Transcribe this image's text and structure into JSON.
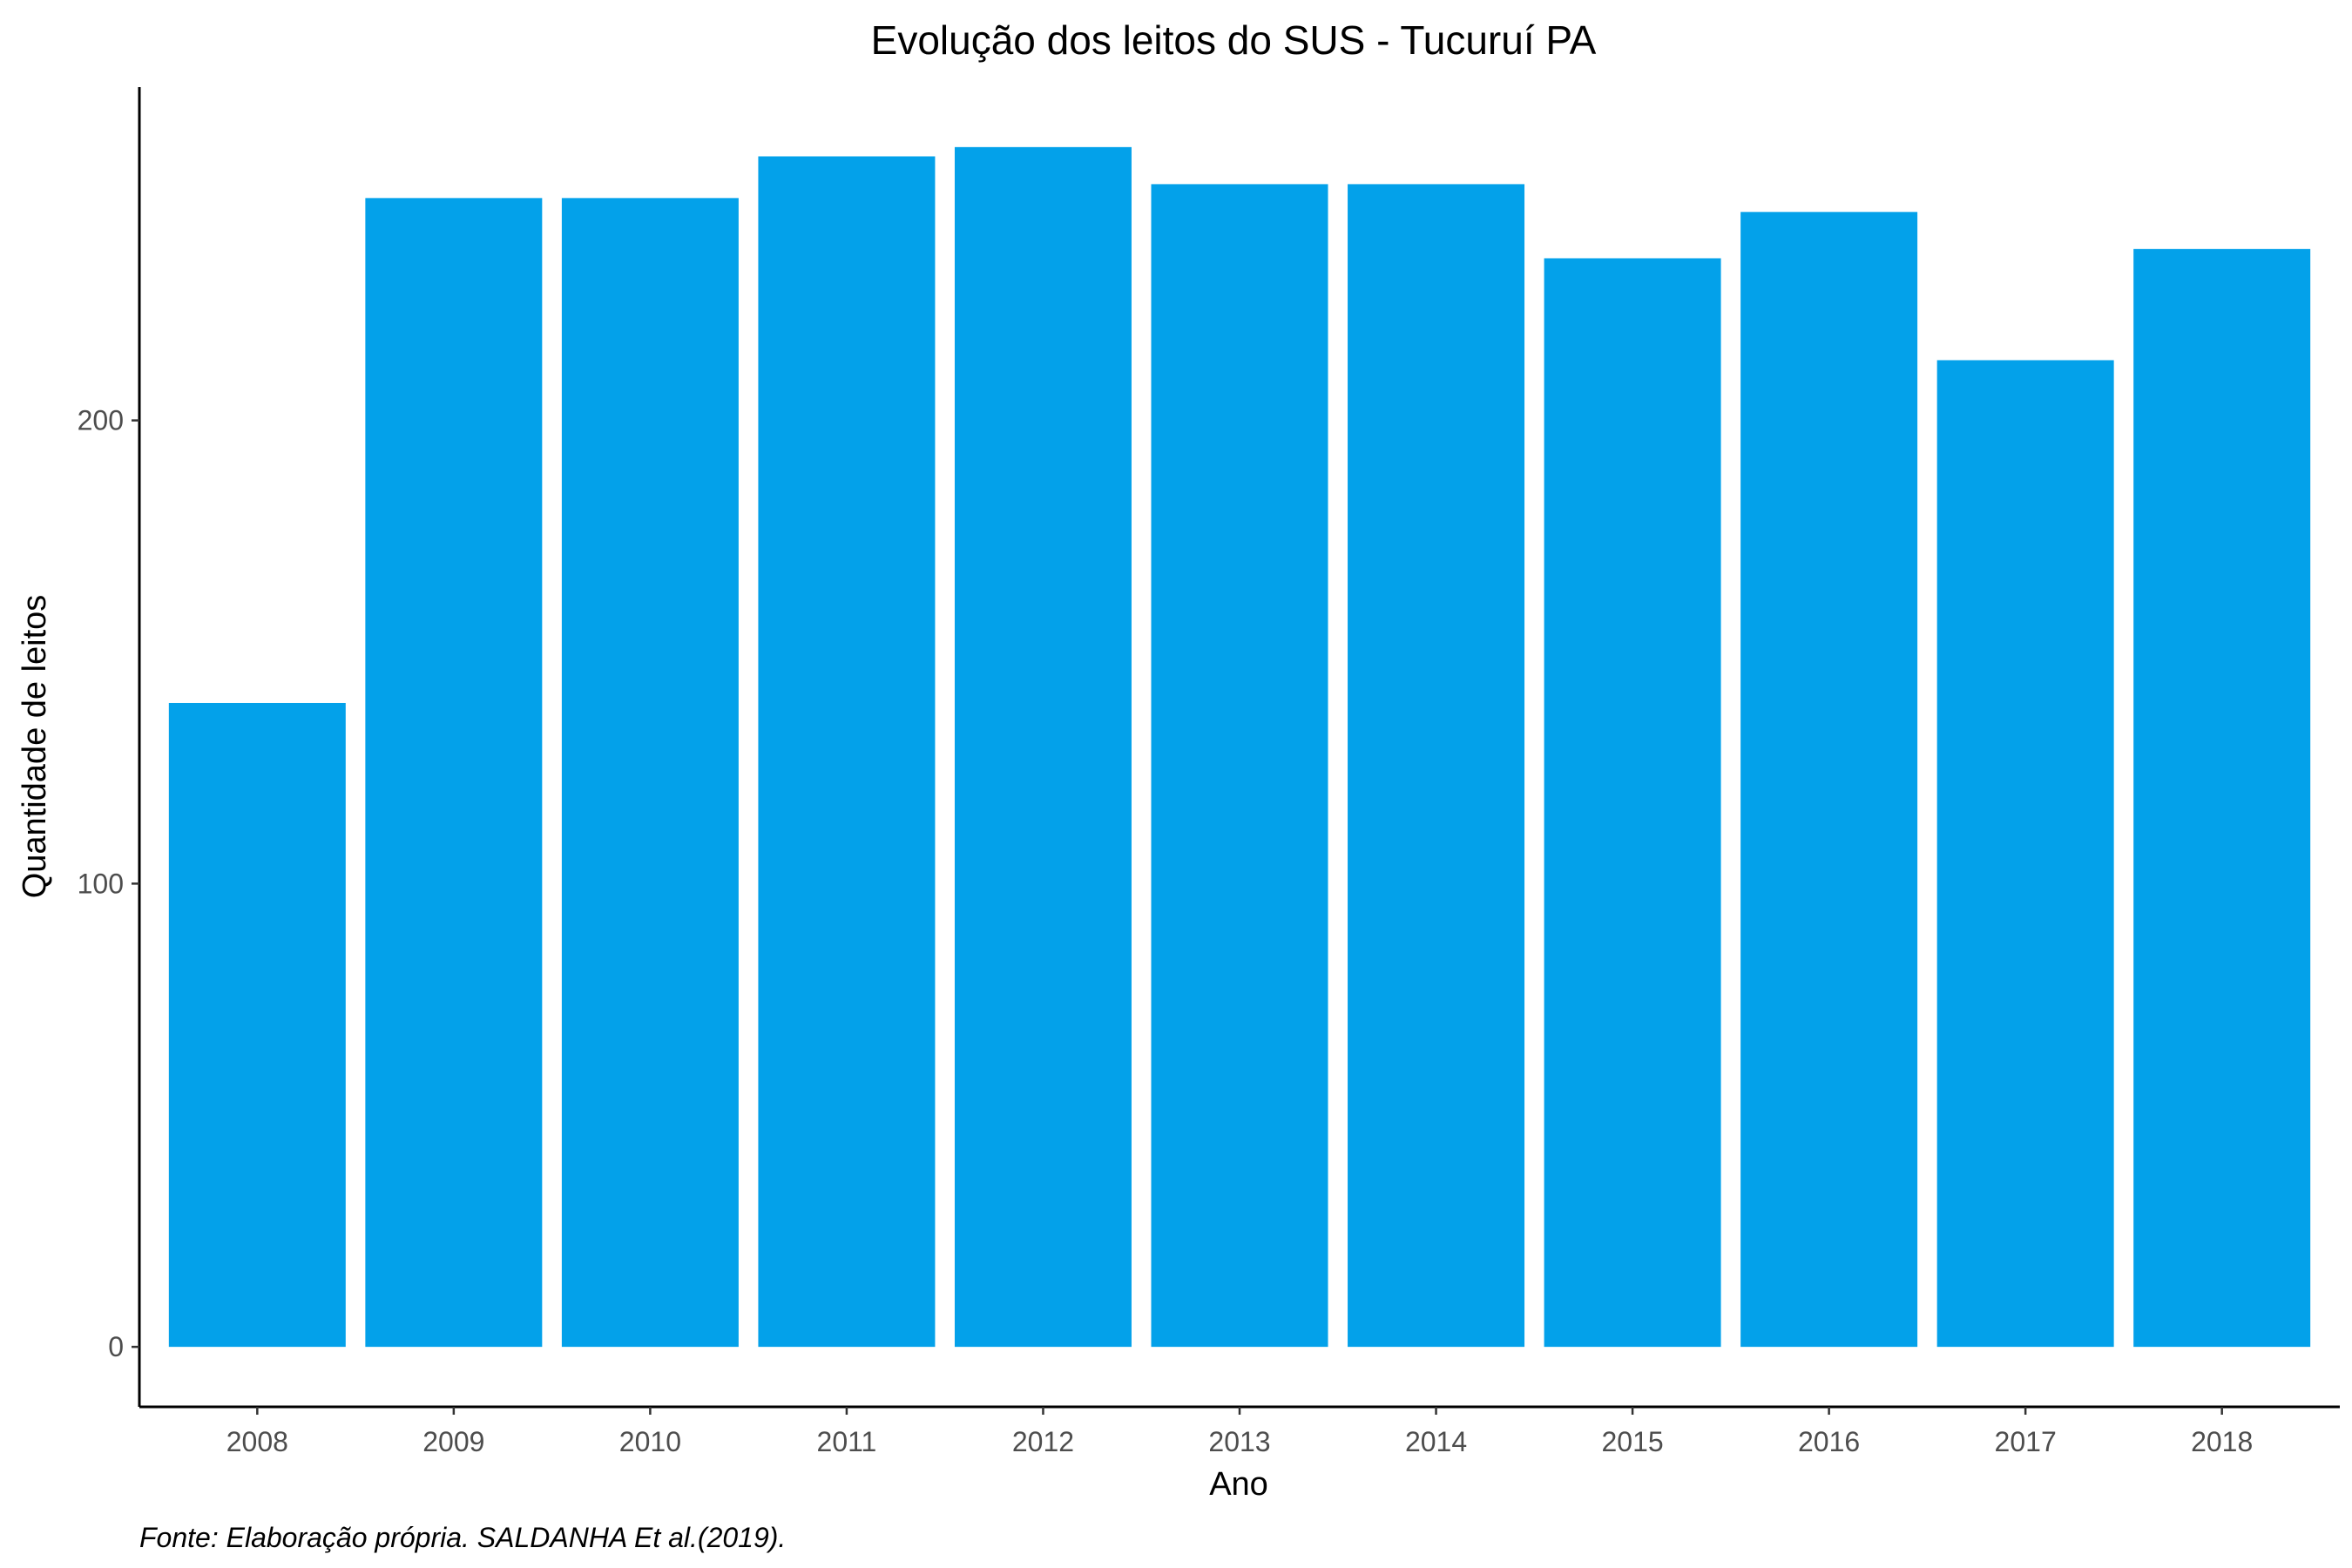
{
  "chart_data": {
    "type": "bar",
    "title": "Evolução dos leitos do SUS -  Tucuruí PA",
    "xlabel": "Ano",
    "ylabel": "Quantidade de leitos",
    "caption": "Fonte: Elaboração própria. SALDANHA Et al.(2019).",
    "categories": [
      "2008",
      "2009",
      "2010",
      "2011",
      "2012",
      "2013",
      "2014",
      "2015",
      "2016",
      "2017",
      "2018"
    ],
    "values": [
      139,
      248,
      248,
      257,
      259,
      251,
      251,
      235,
      245,
      213,
      237
    ],
    "yticks": [
      0,
      100,
      200
    ],
    "ylim": [
      -12.95,
      271.95
    ],
    "grid": false,
    "legend": "none",
    "bar_color": "#03A1EA"
  }
}
